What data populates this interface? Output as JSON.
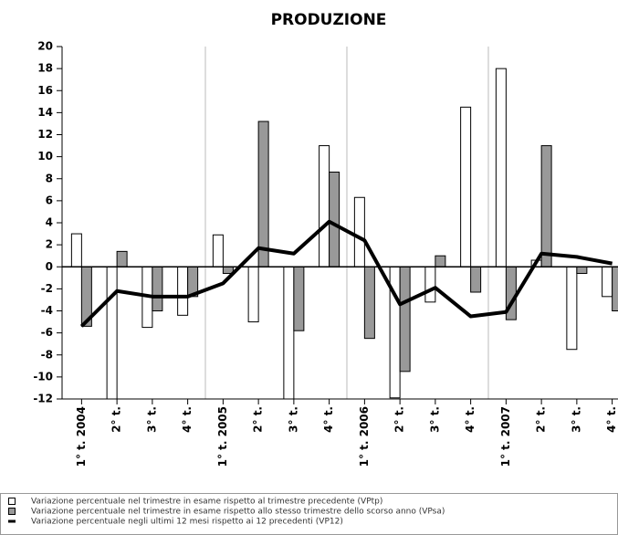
{
  "chart_data": {
    "type": "bar",
    "title": "PRODUZIONE",
    "categories": [
      "1° t. 2004",
      "2° t.",
      "3° t.",
      "4° t.",
      "1° t. 2005",
      "2° t.",
      "3° t.",
      "4° t.",
      "1° t. 2006",
      "2° t.",
      "3° t.",
      "4° t.",
      "1° t. 2007",
      "2° t.",
      "3° t.",
      "4° t."
    ],
    "series": [
      {
        "name": "Variazione percentuale nel trimestre in esame rispetto al trimestre precedente (VPtp)",
        "color": "#ffffff",
        "values": [
          3.0,
          -12,
          -5.5,
          -4.4,
          2.9,
          -5.0,
          -12,
          11.0,
          6.3,
          -11.9,
          -3.2,
          14.5,
          18.0,
          0.6,
          -7.5,
          -2.7
        ]
      },
      {
        "name": "Variazione percentuale nel trimestre in esame rispetto allo stesso trimestre dello scorso anno (VPsa)",
        "color": "#999999",
        "values": [
          -5.4,
          1.4,
          -4.0,
          -2.7,
          -0.6,
          13.2,
          -5.8,
          8.6,
          -6.5,
          -9.5,
          1.0,
          -2.3,
          -4.8,
          11.0,
          -0.6,
          -4.0
        ]
      },
      {
        "name": "Variazione percentuale negli ultimi 12 mesi rispetto ai 12 precedenti (VP12)",
        "color": "#000000",
        "type": "line",
        "values": [
          -5.4,
          -2.2,
          -2.7,
          -2.7,
          -1.5,
          1.7,
          1.2,
          4.1,
          2.4,
          -3.4,
          -1.9,
          -4.5,
          -4.1,
          1.2,
          0.9,
          0.3
        ]
      }
    ],
    "ylim": [
      -12,
      20
    ],
    "yticks": [
      -12,
      -10,
      -8,
      -6,
      -4,
      -2,
      0,
      2,
      4,
      6,
      8,
      10,
      12,
      14,
      16,
      18,
      20
    ]
  }
}
